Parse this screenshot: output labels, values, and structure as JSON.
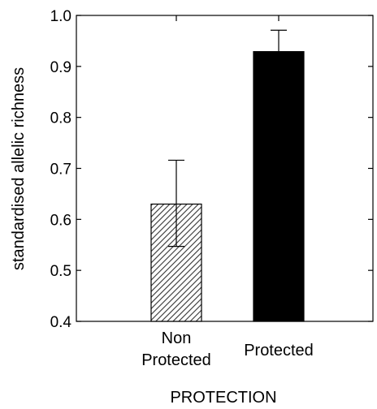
{
  "chart_data": {
    "type": "bar",
    "title": "",
    "xlabel": "PROTECTION",
    "ylabel": "standardised allelic richness",
    "ylim": [
      0.4,
      1.0
    ],
    "yticks": [
      0.4,
      0.5,
      0.6,
      0.7,
      0.8,
      0.9,
      1.0
    ],
    "ytick_labels": [
      "0.4",
      "0.5",
      "0.6",
      "0.7",
      "0.8",
      "0.9",
      "1.0"
    ],
    "categories": [
      {
        "lines": [
          "Non",
          "Protected"
        ]
      },
      {
        "lines": [
          "Protected"
        ]
      }
    ],
    "values": [
      0.63,
      0.929
    ],
    "error_upper": [
      0.716,
      0.971
    ],
    "error_lower": [
      0.547,
      0.929
    ],
    "bar_fills": [
      "hatched",
      "solid"
    ],
    "colors": {
      "axis": "#000000",
      "solid_bar": "#000000",
      "hatch": "#333333"
    },
    "grid": false
  }
}
